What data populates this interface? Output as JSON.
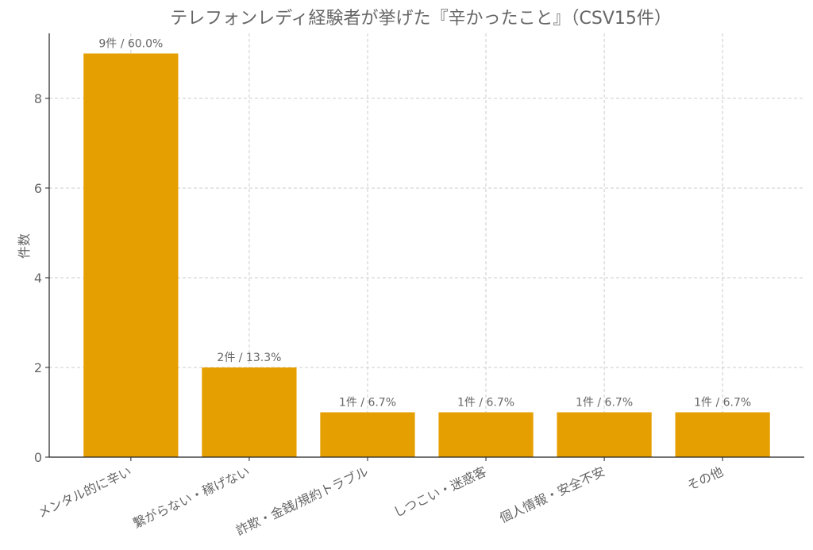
{
  "chart_data": {
    "type": "bar",
    "title": "テレフォンレディ経験者が挙げた『辛かったこと』（CSV15件）",
    "xlabel": "",
    "ylabel": "件数",
    "categories": [
      "メンタル的に辛い",
      "繋がらない・稼げない",
      "詐欺・金銭/規約トラブル",
      "しつこい・迷惑客",
      "個人情報・安全不安",
      "その他"
    ],
    "values": [
      9,
      2,
      1,
      1,
      1,
      1
    ],
    "data_labels": [
      "9件 / 60.0%",
      "2件 / 13.3%",
      "1件 / 6.7%",
      "1件 / 6.7%",
      "1件 / 6.7%",
      "1件 / 6.7%"
    ],
    "ylim": [
      0,
      9.45
    ],
    "yticks": [
      0,
      2,
      4,
      6,
      8
    ],
    "grid": true,
    "bar_color": "#E69F00"
  }
}
